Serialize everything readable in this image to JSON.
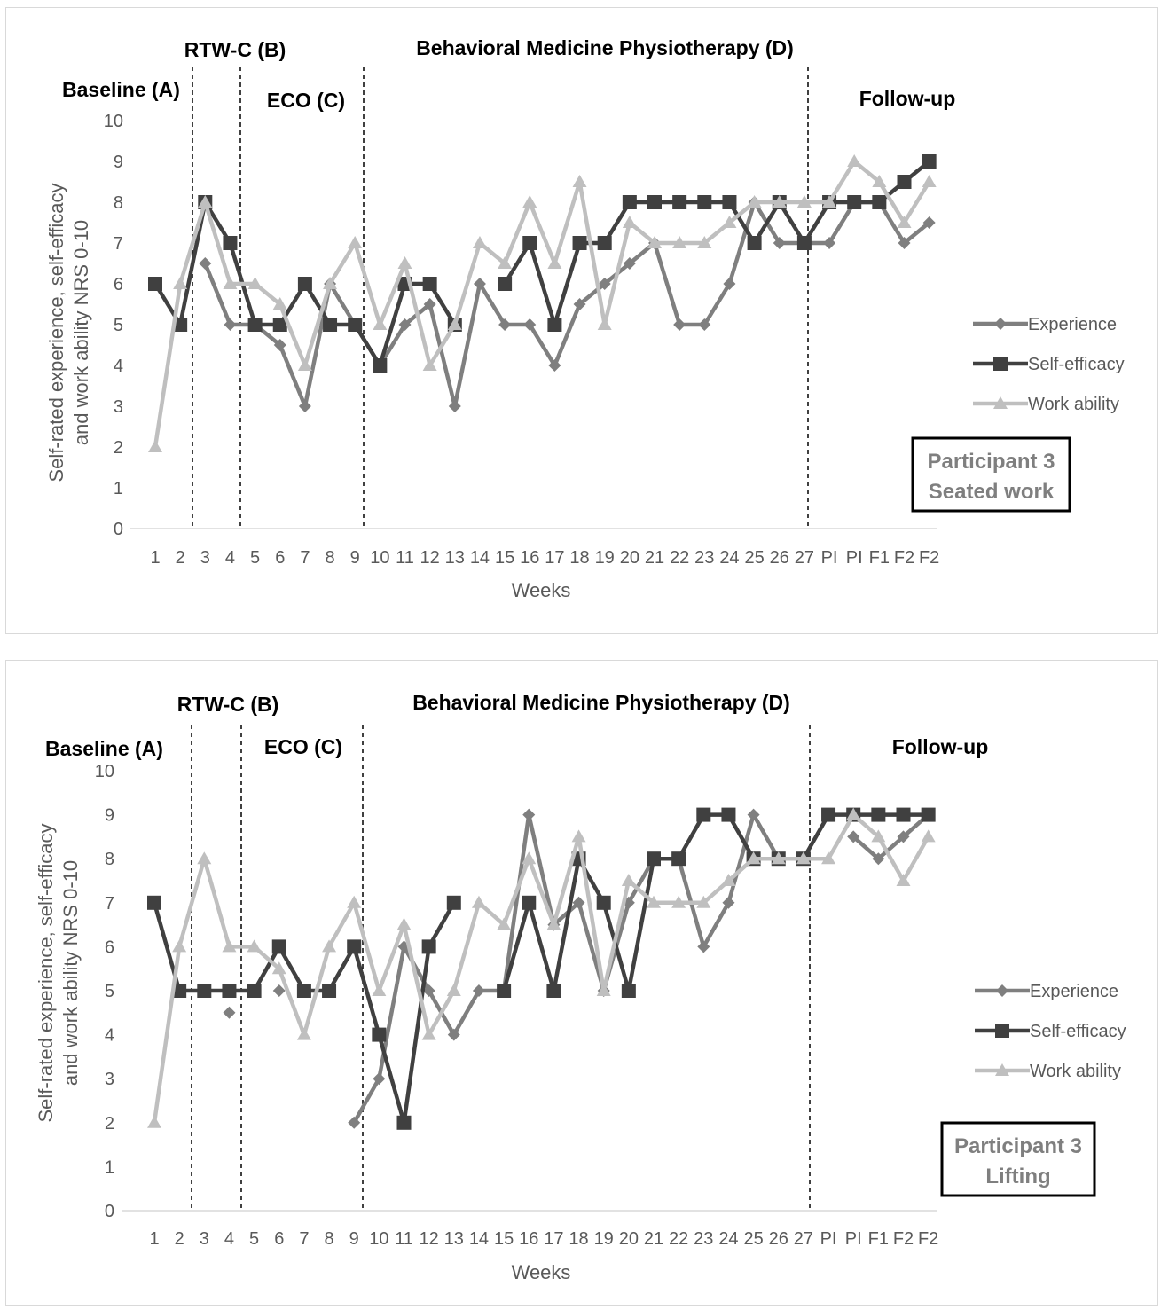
{
  "chart_data": [
    {
      "type": "line",
      "categories": [
        "1",
        "2",
        "3",
        "4",
        "5",
        "6",
        "7",
        "8",
        "9",
        "10",
        "11",
        "12",
        "13",
        "14",
        "15",
        "16",
        "17",
        "18",
        "19",
        "20",
        "21",
        "22",
        "23",
        "24",
        "25",
        "26",
        "27",
        "PI",
        "PI",
        "F1",
        "F2",
        "F2"
      ],
      "xlabel": "Weeks",
      "ylabel": "Self-rated experience, self-efficacy and work ability NRS 0-10",
      "ylim": [
        0,
        10
      ],
      "yticks": [
        0,
        1,
        2,
        3,
        4,
        5,
        6,
        7,
        8,
        9,
        10
      ],
      "grid": false,
      "legend_position": "right",
      "phases": [
        "RTW-C (B)",
        "Behavioral Medicine Physiotherapy (D)",
        "Baseline (A)",
        "ECO (C)",
        "Follow-up"
      ],
      "phase_boundaries_after": [
        2,
        4,
        9,
        27
      ],
      "annotation": [
        "Participant 3",
        "Seated work"
      ],
      "series": [
        {
          "name": "Experience",
          "color": "#7f7f7f",
          "marker": "diamond",
          "values": [
            null,
            null,
            6.5,
            5,
            5,
            4.5,
            3,
            6,
            5,
            4,
            5,
            5.5,
            3,
            6,
            5,
            5,
            4,
            5.5,
            6,
            6.5,
            7,
            5,
            5,
            6,
            8,
            7,
            7,
            7,
            8,
            8,
            7,
            7.5
          ]
        },
        {
          "name": "Self-efficacy",
          "color": "#404040",
          "marker": "square",
          "values": [
            6,
            5,
            8,
            7,
            5,
            5,
            6,
            5,
            5,
            4,
            6,
            6,
            5,
            null,
            6,
            7,
            5,
            7,
            7,
            8,
            8,
            8,
            8,
            8,
            7,
            8,
            7,
            8,
            8,
            8,
            8.5,
            9
          ]
        },
        {
          "name": "Work ability",
          "color": "#bfbfbf",
          "marker": "triangle",
          "values": [
            2,
            6,
            8,
            6,
            6,
            5.5,
            4,
            6,
            7,
            5,
            6.5,
            4,
            5,
            7,
            6.5,
            8,
            6.5,
            8.5,
            5,
            7.5,
            7,
            7,
            7,
            7.5,
            8,
            8,
            8,
            8,
            9,
            8.5,
            7.5,
            8.5
          ]
        }
      ]
    },
    {
      "type": "line",
      "categories": [
        "1",
        "2",
        "3",
        "4",
        "5",
        "6",
        "7",
        "8",
        "9",
        "10",
        "11",
        "12",
        "13",
        "14",
        "15",
        "16",
        "17",
        "18",
        "19",
        "20",
        "21",
        "22",
        "23",
        "24",
        "25",
        "26",
        "27",
        "PI",
        "PI",
        "F1",
        "F2",
        "F2"
      ],
      "xlabel": "Weeks",
      "ylabel": "Self-rated experience, self-efficacy and work ability NRS 0-10",
      "ylim": [
        0,
        10
      ],
      "yticks": [
        0,
        1,
        2,
        3,
        4,
        5,
        6,
        7,
        8,
        9,
        10
      ],
      "grid": false,
      "legend_position": "right",
      "phases": [
        "RTW-C (B)",
        "Behavioral Medicine Physiotherapy (D)",
        "Baseline (A)",
        "ECO (C)",
        "Follow-up"
      ],
      "phase_boundaries_after": [
        2,
        4,
        9,
        27
      ],
      "annotation": [
        "Participant 3",
        "Lifting"
      ],
      "series": [
        {
          "name": "Experience",
          "color": "#7f7f7f",
          "marker": "diamond",
          "values": [
            null,
            null,
            null,
            4.5,
            null,
            5,
            null,
            null,
            2,
            3,
            6,
            5,
            4,
            5,
            5,
            9,
            6.5,
            7,
            5,
            7,
            8,
            8,
            6,
            7,
            9,
            8,
            8,
            null,
            8.5,
            8,
            8.5,
            9
          ]
        },
        {
          "name": "Self-efficacy",
          "color": "#404040",
          "marker": "square",
          "values": [
            7,
            5,
            5,
            5,
            5,
            6,
            5,
            5,
            6,
            4,
            2,
            6,
            7,
            null,
            5,
            7,
            5,
            8,
            7,
            5,
            8,
            8,
            9,
            9,
            8,
            8,
            8,
            9,
            9,
            9,
            9,
            9
          ]
        },
        {
          "name": "Work ability",
          "color": "#bfbfbf",
          "marker": "triangle",
          "values": [
            2,
            6,
            8,
            6,
            6,
            5.5,
            4,
            6,
            7,
            5,
            6.5,
            4,
            5,
            7,
            6.5,
            8,
            6.5,
            8.5,
            5,
            7.5,
            7,
            7,
            7,
            7.5,
            8,
            8,
            8,
            8,
            9,
            8.5,
            7.5,
            8.5
          ]
        }
      ]
    }
  ]
}
